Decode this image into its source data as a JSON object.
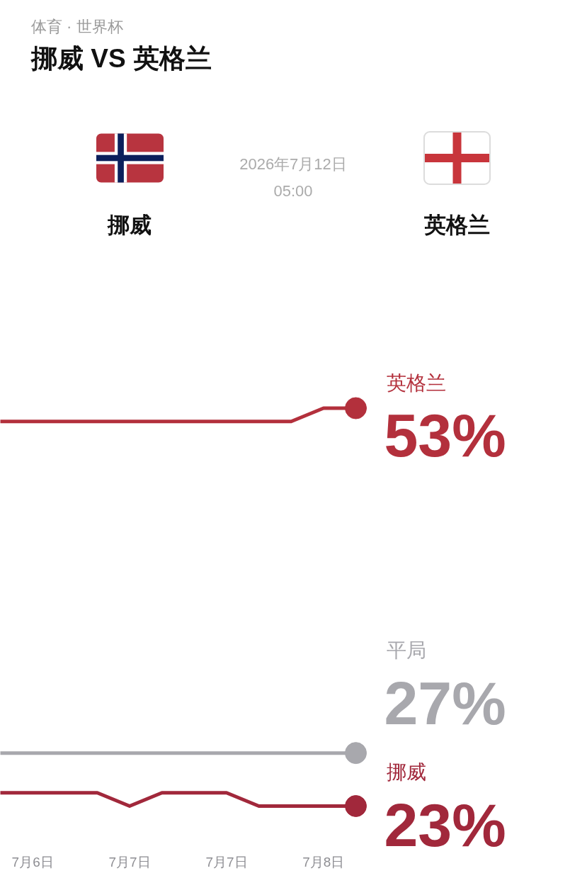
{
  "chart_data": {
    "type": "line",
    "title": "挪威 VS 英格兰",
    "subtitle": "体育 · 世界杯",
    "annotations": [
      "挪威",
      "英格兰",
      "2026年7月12日",
      "05:00"
    ],
    "categories": [
      null,
      "7月6日",
      null,
      null,
      "7月7日",
      null,
      null,
      "7月7日",
      null,
      null,
      "7月8日",
      null
    ],
    "tick_labels": "x",
    "line_style": "solid",
    "series": [
      {
        "name": "英格兰",
        "color": "#b3303c",
        "values": [
          52,
          52,
          52,
          52,
          52,
          52,
          52,
          52,
          52,
          52,
          53,
          53
        ],
        "value_labels": [
          null,
          null,
          null,
          null,
          null,
          null,
          null,
          null,
          null,
          null,
          null,
          "53%"
        ]
      },
      {
        "name": "平局",
        "color": "#a8a8ad",
        "values": [
          27,
          27,
          27,
          27,
          27,
          27,
          27,
          27,
          27,
          27,
          27,
          27
        ],
        "value_labels": [
          null,
          null,
          null,
          null,
          null,
          null,
          null,
          null,
          null,
          null,
          null,
          "27%"
        ]
      },
      {
        "name": "挪威",
        "color": "#a1283b",
        "values": [
          24,
          24,
          24,
          24,
          23,
          24,
          24,
          24,
          23,
          23,
          23,
          23
        ],
        "value_labels": [
          null,
          null,
          null,
          null,
          null,
          null,
          null,
          null,
          null,
          null,
          null,
          "23%"
        ]
      }
    ]
  }
}
